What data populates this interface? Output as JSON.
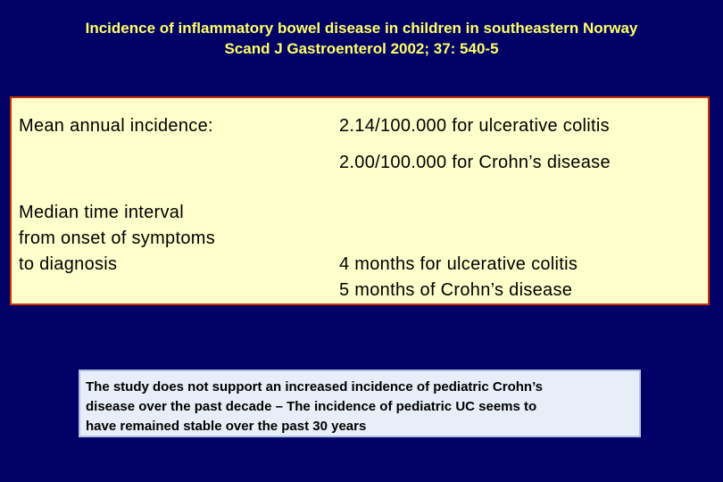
{
  "header": {
    "title_line1": "Incidence of inflammatory bowel disease in children in southeastern Norway",
    "title_line2": "Scand J Gastroenterol 2002; 37: 540-5"
  },
  "info": {
    "mean_label": "Mean annual incidence:",
    "mean_uc": "2.14/100.000 for ulcerative colitis",
    "mean_cd": "2.00/100.000 for Crohn’s disease",
    "median_label_line1": "Median time interval",
    "median_label_line2": "from onset of symptoms",
    "median_label_line3": "to diagnosis",
    "median_uc": "4 months for ulcerative colitis",
    "median_cd": "5 months of Crohn’s disease"
  },
  "note": {
    "line1": "The study does not support an increased incidence of pediatric Crohn’s",
    "line2": "disease over the past decade – The incidence of pediatric UC seems to",
    "line3": "have remained stable over the past 30 years"
  },
  "colors": {
    "background": "#000066",
    "title": "#FFFF66",
    "info_box": "#FFFFCC",
    "info_border": "#CC3300",
    "note_box": "#E8EEF8"
  }
}
